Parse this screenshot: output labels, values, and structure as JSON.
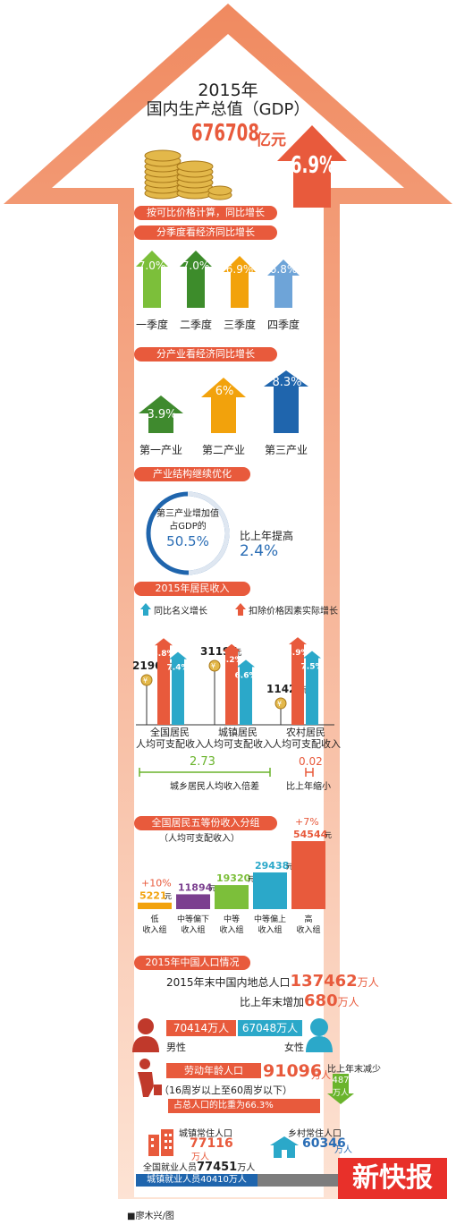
{
  "header": {
    "year_line": "2015年",
    "title": "国内生产总值（GDP）",
    "gdp_value": "676708",
    "gdp_unit": "亿元",
    "gdp_growth": "6.9%",
    "note": "按可比价格计算，同比增长"
  },
  "sections": {
    "quarter": "分季度看经济同比增长",
    "industry": "分产业看经济同比增长",
    "structure": "产业结构继续优化",
    "income": "2015年居民收入",
    "quintile": "全国居民五等份收入分组",
    "population": "2015年中国人口情况"
  },
  "quarters": [
    {
      "label": "一季度",
      "value": "7.0%",
      "color": "#7cbf3a"
    },
    {
      "label": "二季度",
      "value": "7.0%",
      "color": "#3d8c2b"
    },
    {
      "label": "三季度",
      "value": "6.9%",
      "color": "#f2a20c"
    },
    {
      "label": "四季度",
      "value": "6.8%",
      "color": "#6ea4d8"
    }
  ],
  "industries": [
    {
      "label": "第一产业",
      "value": "3.9%",
      "color": "#3f8a2e"
    },
    {
      "label": "第二产业",
      "value": "6%",
      "color": "#f2a20c"
    },
    {
      "label": "第三产业",
      "value": "8.3%",
      "color": "#1f65ad"
    }
  ],
  "structure": {
    "circle_line1": "第三产业增加值",
    "circle_line2": "占GDP的",
    "circle_value": "50.5%",
    "compare_label": "比上年提高",
    "compare_value": "2.4%"
  },
  "chart_data": {
    "type": "bar",
    "title": "2015年居民收入",
    "categories": [
      "全国居民人均可支配收入",
      "城镇居民人均可支配收入",
      "农村居民人均可支配收入"
    ],
    "cat_line1": [
      "全国居民",
      "城镇居民",
      "农村居民"
    ],
    "cat_line2": [
      "人均可支配收入",
      "人均可支配收入",
      "人均可支配收入"
    ],
    "amounts": [
      "21966",
      "31195",
      "11422"
    ],
    "amount_unit": "元",
    "series": [
      {
        "name": "扣除价格因素实际增长",
        "values": [
          8.8,
          8.2,
          8.9
        ],
        "labels": [
          "8.8%",
          "8.2%",
          "8.9%"
        ],
        "color": "#e85a3c"
      },
      {
        "name": "同比名义增长",
        "values": [
          7.4,
          6.6,
          7.5
        ],
        "labels": [
          "7.4%",
          "6.6%",
          "7.5%"
        ],
        "color": "#2ba8c9"
      }
    ],
    "legend": [
      "同比名义增长",
      "扣除价格因素实际增长"
    ],
    "ratio_value": "2.73",
    "ratio_label": "城乡居民人均收入倍差",
    "ratio_change_value": "0.02",
    "ratio_change_label": "比上年缩小",
    "quintile_subtitle": "（人均可支配收入）",
    "quintiles": [
      {
        "l1": "低",
        "l2": "收入组",
        "value": 5221,
        "label": "5221",
        "growth": "+10%",
        "color": "#f2a20c"
      },
      {
        "l1": "中等偏下",
        "l2": "收入组",
        "value": 11894,
        "label": "11894",
        "growth": "",
        "color": "#7b3f8f"
      },
      {
        "l1": "中等",
        "l2": "收入组",
        "value": 19320,
        "label": "19320",
        "growth": "",
        "color": "#7cbf3a"
      },
      {
        "l1": "中等偏上",
        "l2": "收入组",
        "value": 29438,
        "label": "29438",
        "growth": "",
        "color": "#2ba8c9"
      },
      {
        "l1": "高",
        "l2": "收入组",
        "value": 54544,
        "label": "54544",
        "growth": "+7%",
        "color": "#e85a3c"
      }
    ],
    "quintile_unit": "元"
  },
  "population": {
    "total_label": "2015年末中国内地总人口",
    "total_value": "137462",
    "unit": "万人",
    "increase_label": "比上年末增加",
    "increase_value": "680",
    "male_value": "70414万人",
    "female_value": "67048万人",
    "male_label": "男性",
    "female_label": "女性",
    "labor_label": "劳动年龄人口",
    "labor_value": "91096",
    "labor_range": "（16周岁以上至60周岁以下）",
    "labor_decrease_label": "比上年末减少",
    "labor_decrease_value": "487",
    "labor_ratio": "占总人口的比重为66.3%",
    "urban_label": "城镇常住人口",
    "urban_value": "77116",
    "rural_label": "乡村常住人口",
    "rural_value": "60346",
    "employed_label": "全国就业人员",
    "employed_value": "77451",
    "urban_employed": "城镇就业人员40410万人"
  },
  "footer": {
    "credit": "■廖木兴/图",
    "logo": "新快报"
  }
}
